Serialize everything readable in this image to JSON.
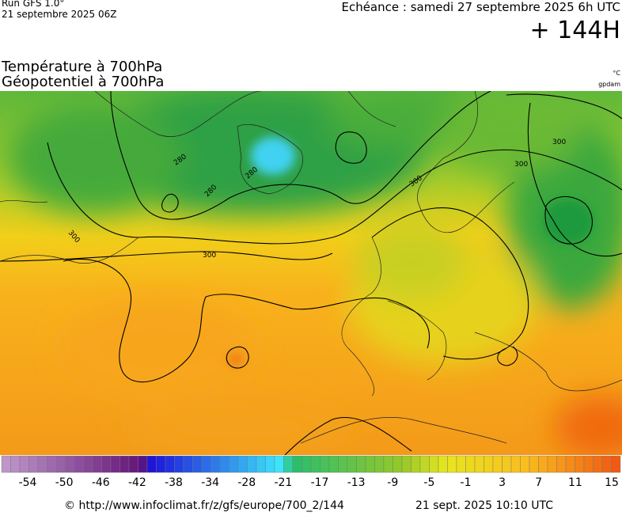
{
  "header": {
    "run": "Run GFS 1.0°",
    "run_date": "21 septembre 2025 06Z",
    "valid_time": "Echéance : samedi 27 septembre 2025 6h UTC",
    "lead": "+ 144H",
    "title_1": "Température à 700hPa",
    "title_2": "Géopotentiel à 700hPa",
    "unit_temp": "°C",
    "unit_geo": "gpdam"
  },
  "contours": [
    280,
    280,
    280,
    300,
    300,
    300,
    300,
    300
  ],
  "colorbar": {
    "labels": [
      -54,
      -50,
      -46,
      -42,
      -38,
      -34,
      -28,
      -21,
      -17,
      -13,
      -9,
      -5,
      -1,
      3,
      7,
      11,
      15
    ]
  },
  "footer": {
    "url": "© http://www.infoclimat.fr/z/gfs/europe/700_2/144",
    "generated": "21 sept. 2025 10:10 UTC"
  }
}
